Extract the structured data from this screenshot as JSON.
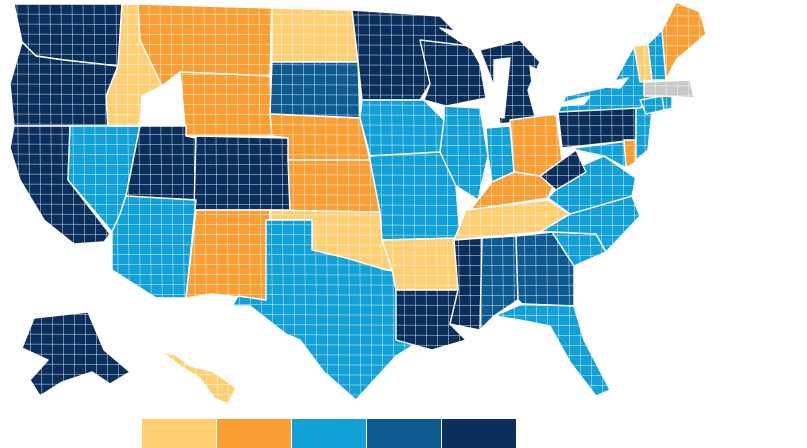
{
  "map": {
    "type": "us-county-choropleth",
    "legend": {
      "placement": "bottom-center",
      "labels_shown": false,
      "bins": [
        {
          "color": "#fecf73"
        },
        {
          "color": "#f99e33"
        },
        {
          "color": "#11a1d6"
        },
        {
          "color": "#0c5a8f"
        },
        {
          "color": "#0b2f5d"
        }
      ]
    },
    "no_data_color": "#c8c8c8",
    "states": [
      {
        "id": "WA",
        "bin": 4
      },
      {
        "id": "OR",
        "bin": 4
      },
      {
        "id": "CA",
        "bin": 4
      },
      {
        "id": "NV",
        "bin": 2
      },
      {
        "id": "ID",
        "bin": 0
      },
      {
        "id": "MT",
        "bin": 1
      },
      {
        "id": "WY",
        "bin": 1
      },
      {
        "id": "UT",
        "bin": 4
      },
      {
        "id": "CO",
        "bin": 4
      },
      {
        "id": "AZ",
        "bin": 2
      },
      {
        "id": "NM",
        "bin": 1
      },
      {
        "id": "ND",
        "bin": 0
      },
      {
        "id": "SD",
        "bin": 3
      },
      {
        "id": "NE",
        "bin": 1
      },
      {
        "id": "KS",
        "bin": 1
      },
      {
        "id": "OK",
        "bin": 0
      },
      {
        "id": "TX",
        "bin": 2
      },
      {
        "id": "MN",
        "bin": 4
      },
      {
        "id": "IA",
        "bin": 2
      },
      {
        "id": "MO",
        "bin": 2
      },
      {
        "id": "AR",
        "bin": 0
      },
      {
        "id": "LA",
        "bin": 4
      },
      {
        "id": "WI",
        "bin": 4
      },
      {
        "id": "IL",
        "bin": 2
      },
      {
        "id": "MI",
        "bin": 4
      },
      {
        "id": "IN",
        "bin": 2
      },
      {
        "id": "OH",
        "bin": 1
      },
      {
        "id": "KY",
        "bin": 1
      },
      {
        "id": "TN",
        "bin": 0
      },
      {
        "id": "MS",
        "bin": 4
      },
      {
        "id": "AL",
        "bin": 3
      },
      {
        "id": "GA",
        "bin": 3
      },
      {
        "id": "FL",
        "bin": 2
      },
      {
        "id": "SC",
        "bin": 2
      },
      {
        "id": "NC",
        "bin": 2
      },
      {
        "id": "VA",
        "bin": 2
      },
      {
        "id": "WV",
        "bin": 4
      },
      {
        "id": "PA",
        "bin": 4
      },
      {
        "id": "MD",
        "bin": 2
      },
      {
        "id": "DE",
        "bin": 1
      },
      {
        "id": "NJ",
        "bin": 2
      },
      {
        "id": "NY",
        "bin": 2
      },
      {
        "id": "CT",
        "bin": 2
      },
      {
        "id": "RI",
        "bin": 2
      },
      {
        "id": "MA",
        "bin": -1
      },
      {
        "id": "VT",
        "bin": 0
      },
      {
        "id": "NH",
        "bin": 2
      },
      {
        "id": "ME",
        "bin": 1
      },
      {
        "id": "AK",
        "bin": 4
      },
      {
        "id": "HI",
        "bin": 0
      }
    ]
  }
}
